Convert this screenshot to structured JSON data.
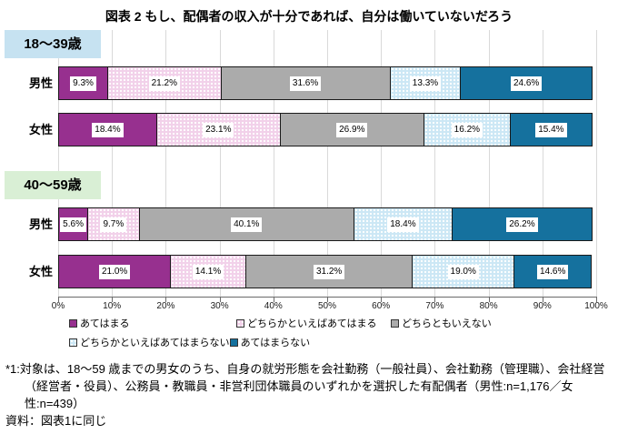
{
  "title": "図表 2 もし、配偶者の収入が十分であれば、自分は働いていないだろう",
  "chart_data": {
    "type": "bar",
    "variant": "horizontal-stacked-100",
    "title": "図表 2 もし、配偶者の収入が十分であれば、自分は働いていないだろう",
    "xlim": [
      0,
      100
    ],
    "x_ticks": [
      "0%",
      "10%",
      "20%",
      "30%",
      "40%",
      "50%",
      "60%",
      "70%",
      "80%",
      "90%",
      "100%"
    ],
    "grid": true,
    "legend_position": "bottom",
    "series": [
      {
        "name": "あてはまる",
        "color": "#97308f",
        "pattern": "solid"
      },
      {
        "name": "どちらかといえばあてはまる",
        "color": "#f2d1ea",
        "pattern": "dots"
      },
      {
        "name": "どちらともいえない",
        "color": "#ababab",
        "pattern": "solid"
      },
      {
        "name": "どちらかといえばあてはまらない",
        "color": "#cce7f5",
        "pattern": "dots"
      },
      {
        "name": "あてはまらない",
        "color": "#15719e",
        "pattern": "solid"
      }
    ],
    "groups": [
      {
        "label": "18～39歳",
        "header_bg": "#c6e2f1",
        "rows": [
          {
            "category": "男性",
            "values": [
              9.3,
              21.2,
              31.6,
              13.3,
              24.6
            ]
          },
          {
            "category": "女性",
            "values": [
              18.4,
              23.1,
              26.9,
              16.2,
              15.4
            ]
          }
        ]
      },
      {
        "label": "40～59歳",
        "header_bg": "#d9efd5",
        "rows": [
          {
            "category": "男性",
            "values": [
              5.6,
              9.7,
              40.1,
              18.4,
              26.2
            ]
          },
          {
            "category": "女性",
            "values": [
              21.0,
              14.1,
              31.2,
              19.0,
              14.6
            ]
          }
        ]
      }
    ],
    "legend_rows": [
      [
        0,
        1,
        2
      ],
      [
        3,
        4
      ]
    ]
  },
  "footnotes": {
    "note1": "*1:対象は、18～59 歳までの男女のうち、自身の就労形態を会社勤務（一般社員）、会社勤務（管理職）、会社経営（経営者・役員）、公務員・教職員・非営利団体職員のいずれかを選択した有配偶者（男性:n=1,176／女性:n=439）",
    "source": "資料：図表1に同じ"
  }
}
